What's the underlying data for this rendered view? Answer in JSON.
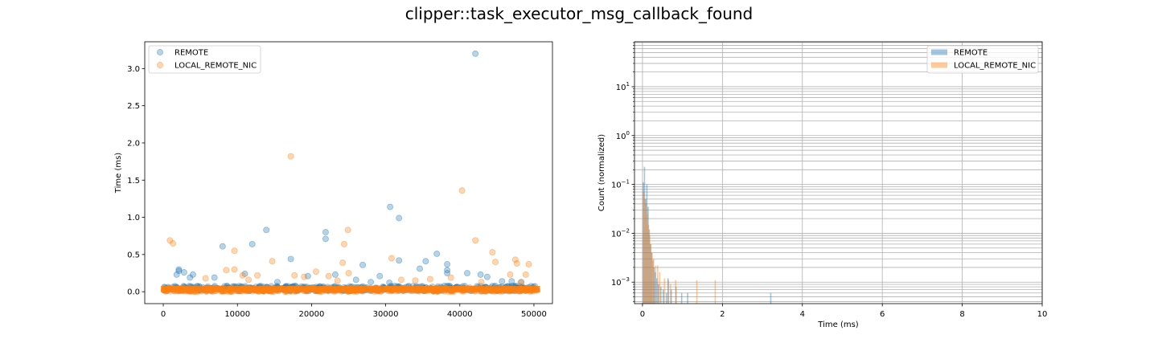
{
  "figure": {
    "suptitle": "clipper::task_executor_msg_callback_found",
    "colors": {
      "remote": "#1f77b4",
      "local": "#ff7f0e"
    }
  },
  "chart_data": [
    {
      "type": "scatter",
      "title": "",
      "xlabel": "",
      "ylabel": "Time (ms)",
      "xlim": [
        -2500,
        52500
      ],
      "ylim": [
        -0.16,
        3.36
      ],
      "xticks": [
        0,
        10000,
        20000,
        30000,
        40000,
        50000
      ],
      "xtick_labels": [
        "0",
        "10000",
        "20000",
        "30000",
        "40000",
        "50000"
      ],
      "yticks": [
        0.0,
        0.5,
        1.0,
        1.5,
        2.0,
        2.5,
        3.0
      ],
      "ytick_labels": [
        "0.0",
        "0.5",
        "1.0",
        "1.5",
        "2.0",
        "2.5",
        "3.0"
      ],
      "grid": false,
      "legend": "top-left",
      "series": [
        {
          "name": "REMOTE",
          "color": "#1f77b4",
          "points": [
            [
              42100,
              3.2
            ],
            [
              30600,
              1.14
            ],
            [
              31800,
              0.99
            ],
            [
              13900,
              0.83
            ],
            [
              21900,
              0.8
            ],
            [
              21900,
              0.71
            ],
            [
              12000,
              0.64
            ],
            [
              8000,
              0.61
            ],
            [
              36900,
              0.51
            ],
            [
              17200,
              0.44
            ],
            [
              31800,
              0.42
            ],
            [
              35400,
              0.41
            ],
            [
              38300,
              0.37
            ],
            [
              26900,
              0.36
            ],
            [
              34600,
              0.31
            ],
            [
              38300,
              0.29
            ],
            [
              2100,
              0.3
            ],
            [
              2100,
              0.28
            ],
            [
              2800,
              0.26
            ],
            [
              38300,
              0.25
            ],
            [
              11000,
              0.24
            ],
            [
              41000,
              0.25
            ],
            [
              42800,
              0.23
            ],
            [
              1800,
              0.23
            ],
            [
              4000,
              0.23
            ],
            [
              23200,
              0.23
            ],
            [
              29200,
              0.21
            ],
            [
              6900,
              0.19
            ],
            [
              3600,
              0.19
            ],
            [
              19500,
              0.21
            ],
            [
              30500,
              0.12
            ],
            [
              28000,
              0.13
            ],
            [
              45700,
              0.14
            ],
            [
              47000,
              0.14
            ],
            [
              48300,
              0.13
            ],
            [
              15400,
              0.13
            ],
            [
              26000,
              0.16
            ],
            [
              43700,
              0.2
            ]
          ]
        },
        {
          "name": "LOCAL_REMOTE_NIC",
          "color": "#ff7f0e",
          "points": [
            [
              17200,
              1.82
            ],
            [
              40300,
              1.36
            ],
            [
              900,
              0.69
            ],
            [
              1300,
              0.65
            ],
            [
              24900,
              0.83
            ],
            [
              42100,
              0.69
            ],
            [
              24400,
              0.64
            ],
            [
              9600,
              0.55
            ],
            [
              44400,
              0.53
            ],
            [
              47500,
              0.43
            ],
            [
              30800,
              0.45
            ],
            [
              14700,
              0.41
            ],
            [
              44800,
              0.4
            ],
            [
              24200,
              0.39
            ],
            [
              47700,
              0.38
            ],
            [
              49300,
              0.37
            ],
            [
              9600,
              0.3
            ],
            [
              8500,
              0.29
            ],
            [
              20600,
              0.27
            ],
            [
              25000,
              0.25
            ],
            [
              10700,
              0.22
            ],
            [
              22300,
              0.21
            ],
            [
              12700,
              0.22
            ],
            [
              17700,
              0.22
            ],
            [
              19000,
              0.2
            ],
            [
              38800,
              0.19
            ],
            [
              46800,
              0.23
            ],
            [
              48900,
              0.23
            ],
            [
              5700,
              0.18
            ],
            [
              11500,
              0.16
            ],
            [
              34000,
              0.15
            ],
            [
              32100,
              0.16
            ],
            [
              36000,
              0.17
            ],
            [
              42900,
              0.13
            ],
            [
              48200,
              0.12
            ],
            [
              23500,
              0.15
            ]
          ]
        }
      ]
    },
    {
      "type": "bar",
      "title": "",
      "xlabel": "Time (ms)",
      "ylabel": "Count (normalized)",
      "xlim": [
        -0.2,
        10.0
      ],
      "ylim_log10": [
        -3.44,
        1.92
      ],
      "yscale": "log",
      "xticks": [
        0,
        2,
        4,
        6,
        8,
        10
      ],
      "xtick_labels": [
        "0",
        "2",
        "4",
        "6",
        "8",
        "10"
      ],
      "yticks_log10": [
        -3,
        -2,
        -1,
        0,
        1
      ],
      "ytick_labels_base": [
        "10",
        "10",
        "10",
        "10",
        "10"
      ],
      "ytick_labels_exp": [
        "−3",
        "−2",
        "−1",
        "0",
        "1"
      ],
      "grid": true,
      "legend": "top-right",
      "series": [
        {
          "name": "REMOTE",
          "color": "#1f77b4",
          "bars": [
            [
              0.02,
              0.11
            ],
            [
              0.05,
              0.23
            ],
            [
              0.08,
              0.05
            ],
            [
              0.11,
              0.1
            ],
            [
              0.14,
              0.035
            ],
            [
              0.17,
              0.012
            ],
            [
              0.2,
              0.006
            ],
            [
              0.23,
              0.004
            ],
            [
              0.26,
              0.0028
            ],
            [
              0.29,
              0.002
            ],
            [
              0.32,
              0.0016
            ],
            [
              0.36,
              0.0012
            ],
            [
              0.4,
              0.0009
            ],
            [
              0.46,
              0.0008
            ],
            [
              0.52,
              0.0007
            ],
            [
              0.6,
              0.0006
            ],
            [
              0.64,
              0.0012
            ],
            [
              0.72,
              0.0007
            ],
            [
              0.84,
              0.0008
            ],
            [
              0.98,
              0.0006
            ],
            [
              1.13,
              0.0006
            ],
            [
              3.21,
              0.0006
            ]
          ]
        },
        {
          "name": "LOCAL_REMOTE_NIC",
          "color": "#ff7f0e",
          "bars": [
            [
              0.03,
              0.07
            ],
            [
              0.06,
              0.05
            ],
            [
              0.09,
              0.04
            ],
            [
              0.12,
              0.025
            ],
            [
              0.15,
              0.015
            ],
            [
              0.18,
              0.009
            ],
            [
              0.21,
              0.006
            ],
            [
              0.24,
              0.004
            ],
            [
              0.28,
              0.003
            ],
            [
              0.33,
              0.0022
            ],
            [
              0.38,
              0.0022
            ],
            [
              0.43,
              0.0016
            ],
            [
              0.55,
              0.0012
            ],
            [
              0.65,
              0.0011
            ],
            [
              0.7,
              0.0009
            ],
            [
              0.83,
              0.0011
            ],
            [
              1.36,
              0.0011
            ],
            [
              1.82,
              0.0011
            ]
          ]
        }
      ]
    }
  ]
}
